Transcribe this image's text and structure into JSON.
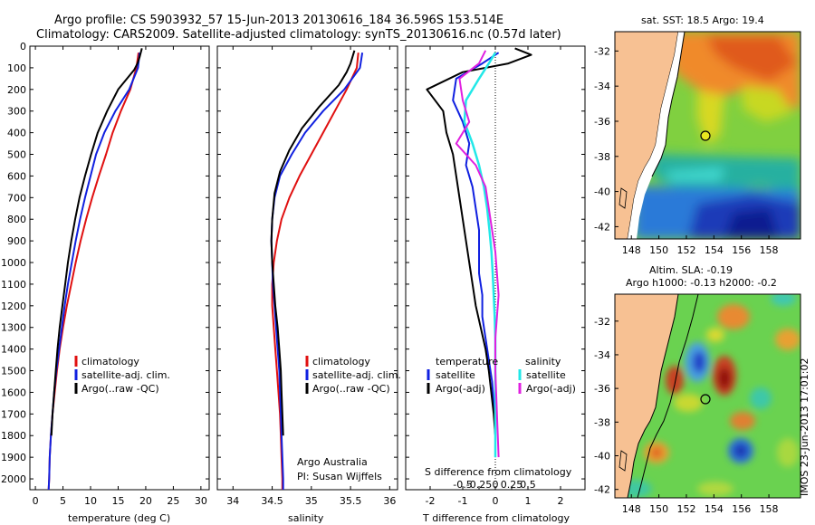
{
  "header": {
    "line1": "Argo profile: CS 5903932_57 15-Jun-2013 20130616_184 36.596S 153.514E",
    "line2": "Climatology: CARS2009. Satellite-adjusted climatology: synTS_20130616.nc (0.57d later)"
  },
  "colors": {
    "climatology": "#e01010",
    "satellite": "#1020e0",
    "argo": "#000000",
    "satellite_salinity": "#22e8e8",
    "argo_salinity": "#e020e0",
    "land": "#f7c193"
  },
  "panel_temperature": {
    "xlabel": "temperature (deg C)",
    "xticks": [
      "0",
      "5",
      "10",
      "15",
      "20",
      "25",
      "30"
    ],
    "legend": [
      "climatology",
      "satellite-adj. clim.",
      "Argo(..raw -QC)"
    ]
  },
  "panel_salinity": {
    "xlabel": "salinity",
    "xticks": [
      "34",
      "34.5",
      "35",
      "35.5",
      "36"
    ],
    "legend": [
      "climatology",
      "satellite-adj. clim.",
      "Argo(..raw -QC)"
    ],
    "credit1": "Argo Australia",
    "credit2": "PI: Susan Wijffels"
  },
  "panel_difference": {
    "xlabel": "T difference from climatology",
    "top_label": "S difference from climatology",
    "xticks_T": [
      "-2",
      "-1",
      "0",
      "1",
      "2"
    ],
    "xticks_S": [
      "-0.5",
      "-0.25",
      "0",
      "0.25",
      "0.5"
    ],
    "legend_temperature_title": "temperature",
    "legend_salinity_title": "salinity",
    "legend_items": [
      "satellite",
      "Argo(-adj)"
    ]
  },
  "depth_ticks": [
    "0",
    "100",
    "200",
    "300",
    "400",
    "500",
    "600",
    "700",
    "800",
    "900",
    "1000",
    "1100",
    "1200",
    "1300",
    "1400",
    "1500",
    "1600",
    "1700",
    "1800",
    "1900",
    "2000"
  ],
  "map_sst": {
    "title": "sat. SST: 18.5 Argo: 19.4",
    "lat_ticks": [
      "-32",
      "-34",
      "-36",
      "-38",
      "-40",
      "-42"
    ],
    "lon_ticks": [
      "148",
      "150",
      "152",
      "154",
      "156",
      "158"
    ]
  },
  "map_sla": {
    "title1": "Altim. SLA: -0.19",
    "title2": "Argo h1000: -0.13 h2000: -0.2",
    "lat_ticks": [
      "-32",
      "-34",
      "-36",
      "-38",
      "-40",
      "-42"
    ],
    "lon_ticks": [
      "148",
      "150",
      "152",
      "154",
      "156",
      "158"
    ]
  },
  "side_stamp": "IMOS 23-Jun-2013 17:01:02",
  "chart_data": [
    {
      "type": "line",
      "title": "",
      "xlabel": "temperature (deg C)",
      "ylabel": "",
      "xlim": [
        -1,
        31.5
      ],
      "ylim": [
        2050,
        0
      ],
      "series": [
        {
          "name": "climatology",
          "x": [
            18.7,
            18.3,
            17.2,
            15.5,
            14.0,
            12.8,
            11.5,
            10.3,
            9.2,
            8.2,
            7.3,
            6.5,
            5.7,
            5.0,
            4.4,
            3.9,
            3.5,
            3.1,
            2.8,
            2.6,
            2.5,
            2.4
          ],
          "y": [
            30,
            100,
            200,
            300,
            400,
            500,
            600,
            700,
            800,
            900,
            1000,
            1100,
            1200,
            1300,
            1400,
            1500,
            1600,
            1700,
            1800,
            1900,
            2000,
            2050
          ]
        },
        {
          "name": "satellite-adj. clim.",
          "x": [
            18.9,
            18.6,
            17.0,
            14.5,
            12.5,
            11.0,
            10.0,
            9.0,
            8.1,
            7.3,
            6.6,
            5.9,
            5.3,
            4.8,
            4.3,
            3.8,
            3.4,
            3.1,
            2.8,
            2.6,
            2.5,
            2.4
          ],
          "y": [
            30,
            100,
            200,
            300,
            400,
            500,
            600,
            700,
            800,
            900,
            1000,
            1100,
            1200,
            1300,
            1400,
            1500,
            1600,
            1700,
            1800,
            1900,
            2000,
            2050
          ]
        },
        {
          "name": "Argo(..raw -QC)",
          "x": [
            19.3,
            18.9,
            18.5,
            17.9,
            15.0,
            13.0,
            11.3,
            10.1,
            9.0,
            8.0,
            7.2,
            6.5,
            5.9,
            5.4,
            4.9,
            4.4,
            4.0,
            3.7,
            3.4,
            3.1,
            2.9
          ],
          "y": [
            10,
            50,
            80,
            110,
            200,
            300,
            400,
            500,
            600,
            700,
            800,
            900,
            1000,
            1100,
            1200,
            1300,
            1400,
            1500,
            1600,
            1700,
            1800
          ]
        }
      ]
    },
    {
      "type": "line",
      "title": "",
      "xlabel": "salinity",
      "ylabel": "",
      "xlim": [
        33.8,
        36.1
      ],
      "ylim": [
        2050,
        0
      ],
      "series": [
        {
          "name": "climatology",
          "x": [
            35.6,
            35.58,
            35.45,
            35.3,
            35.15,
            35.0,
            34.85,
            34.72,
            34.62,
            34.56,
            34.52,
            34.5,
            34.5,
            34.52,
            34.54,
            34.56,
            34.58,
            34.6,
            34.61,
            34.62,
            34.63,
            34.63
          ],
          "y": [
            30,
            100,
            200,
            300,
            400,
            500,
            600,
            700,
            800,
            900,
            1000,
            1100,
            1200,
            1300,
            1400,
            1500,
            1600,
            1700,
            1800,
            1900,
            2000,
            2050
          ]
        },
        {
          "name": "satellite-adj. clim.",
          "x": [
            35.65,
            35.62,
            35.42,
            35.15,
            34.92,
            34.75,
            34.6,
            34.53,
            34.5,
            34.49,
            34.5,
            34.51,
            34.53,
            34.55,
            34.57,
            34.59,
            34.6,
            34.61,
            34.62,
            34.63,
            34.64,
            34.64
          ],
          "y": [
            30,
            100,
            200,
            300,
            400,
            500,
            600,
            700,
            800,
            900,
            1000,
            1100,
            1200,
            1300,
            1400,
            1500,
            1600,
            1700,
            1800,
            1900,
            2000,
            2050
          ]
        },
        {
          "name": "Argo(..raw -QC)",
          "x": [
            35.55,
            35.5,
            35.45,
            35.35,
            35.1,
            34.88,
            34.72,
            34.6,
            34.53,
            34.5,
            34.49,
            34.5,
            34.52,
            34.54,
            34.57,
            34.59,
            34.61,
            34.62,
            34.63,
            34.64
          ],
          "y": [
            20,
            80,
            120,
            180,
            280,
            380,
            480,
            580,
            680,
            800,
            900,
            1000,
            1100,
            1200,
            1300,
            1400,
            1500,
            1600,
            1700,
            1800
          ]
        }
      ]
    },
    {
      "type": "line",
      "title": "",
      "xlabel": "T difference from climatology",
      "ylabel": "",
      "xlim": [
        -2.75,
        2.75
      ],
      "ylim": [
        2050,
        0
      ],
      "series": [
        {
          "name": "temperature satellite",
          "x": [
            0.1,
            -0.4,
            -1.2,
            -1.3,
            -1.0,
            -0.8,
            -0.9,
            -0.7,
            -0.6,
            -0.5,
            -0.5,
            -0.5,
            -0.4,
            -0.4,
            -0.3,
            -0.2,
            -0.1,
            -0.05,
            0.0,
            0.0
          ],
          "y": [
            30,
            80,
            150,
            250,
            350,
            450,
            550,
            650,
            750,
            850,
            950,
            1050,
            1150,
            1250,
            1350,
            1450,
            1550,
            1650,
            1800,
            1900
          ]
        },
        {
          "name": "temperature Argo(-adj)",
          "x": [
            0.6,
            1.1,
            0.4,
            -1.0,
            -2.1,
            -1.6,
            -1.5,
            -1.3,
            -1.2,
            -1.1,
            -1.0,
            -0.9,
            -0.8,
            -0.7,
            -0.6,
            -0.45,
            -0.3,
            -0.2,
            -0.05,
            0.0
          ],
          "y": [
            10,
            40,
            80,
            120,
            200,
            300,
            400,
            500,
            600,
            700,
            800,
            900,
            1000,
            1100,
            1200,
            1300,
            1400,
            1500,
            1700,
            1800
          ]
        },
        {
          "name": "salinity satellite",
          "x": [
            0.0,
            -0.2,
            -0.5,
            -0.9,
            -0.95,
            -0.7,
            -0.5,
            -0.35,
            -0.25,
            -0.18,
            -0.12,
            -0.08,
            -0.05,
            -0.02,
            0.0,
            0.0,
            0.0,
            0.0,
            0.0
          ],
          "y": [
            30,
            80,
            150,
            250,
            350,
            450,
            550,
            650,
            750,
            850,
            950,
            1050,
            1150,
            1250,
            1350,
            1500,
            1650,
            1800,
            1900
          ]
        },
        {
          "name": "salinity Argo(-adj)",
          "x": [
            -0.3,
            -0.5,
            -1.1,
            -1.0,
            -0.8,
            -1.2,
            -0.6,
            -0.3,
            -0.2,
            -0.1,
            0.0,
            0.05,
            0.1,
            0.05,
            0.0,
            0.0,
            0.05,
            0.1
          ],
          "y": [
            20,
            80,
            150,
            250,
            350,
            450,
            550,
            650,
            750,
            850,
            950,
            1050,
            1150,
            1250,
            1350,
            1500,
            1700,
            1900
          ]
        }
      ]
    }
  ]
}
